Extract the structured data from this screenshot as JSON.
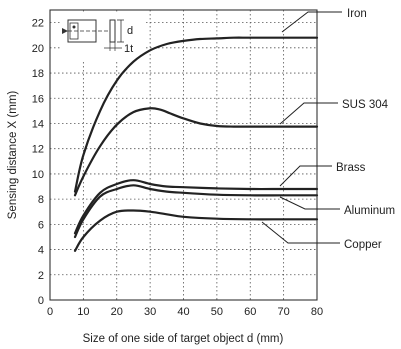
{
  "chart_data": {
    "type": "line",
    "xlabel": "Size of one side of target object d (mm)",
    "ylabel": "Sensing distance X (mm)",
    "xlim": [
      0,
      80
    ],
    "ylim": [
      0,
      23
    ],
    "xticks": [
      0,
      10,
      20,
      30,
      40,
      50,
      60,
      70,
      80
    ],
    "yticks": [
      0,
      2,
      4,
      6,
      8,
      10,
      12,
      14,
      16,
      18,
      20,
      22
    ],
    "grid": true,
    "inset_labels": {
      "d": "d",
      "t": "1t"
    },
    "series": [
      {
        "name": "Iron",
        "x": [
          7.5,
          10,
          15,
          20,
          25,
          30,
          35,
          40,
          45,
          50,
          55,
          60,
          70,
          80
        ],
        "y": [
          8.6,
          11.5,
          15.0,
          17.4,
          18.9,
          19.8,
          20.3,
          20.55,
          20.7,
          20.75,
          20.8,
          20.8,
          20.8,
          20.8
        ]
      },
      {
        "name": "SUS 304",
        "x": [
          7.5,
          10,
          15,
          20,
          25,
          30,
          33,
          36,
          40,
          45,
          50,
          55,
          60,
          70,
          80
        ],
        "y": [
          8.3,
          9.8,
          12.2,
          13.9,
          14.9,
          15.2,
          15.1,
          14.8,
          14.4,
          14.0,
          13.8,
          13.75,
          13.75,
          13.75,
          13.75
        ]
      },
      {
        "name": "Brass",
        "x": [
          7.5,
          10,
          15,
          20,
          25,
          30,
          35,
          40,
          50,
          60,
          70,
          80
        ],
        "y": [
          5.3,
          6.7,
          8.5,
          9.2,
          9.5,
          9.2,
          9.0,
          8.95,
          8.85,
          8.8,
          8.8,
          8.8
        ]
      },
      {
        "name": "Aluminum",
        "x": [
          7.5,
          10,
          15,
          20,
          25,
          30,
          35,
          40,
          50,
          60,
          70,
          80
        ],
        "y": [
          5.0,
          6.4,
          8.2,
          8.8,
          9.1,
          8.8,
          8.6,
          8.5,
          8.35,
          8.3,
          8.3,
          8.3
        ]
      },
      {
        "name": "Copper",
        "x": [
          7.5,
          10,
          15,
          20,
          25,
          30,
          35,
          40,
          50,
          60,
          70,
          80
        ],
        "y": [
          3.9,
          5.0,
          6.3,
          7.0,
          7.1,
          7.0,
          6.8,
          6.6,
          6.45,
          6.4,
          6.4,
          6.4
        ]
      }
    ]
  }
}
